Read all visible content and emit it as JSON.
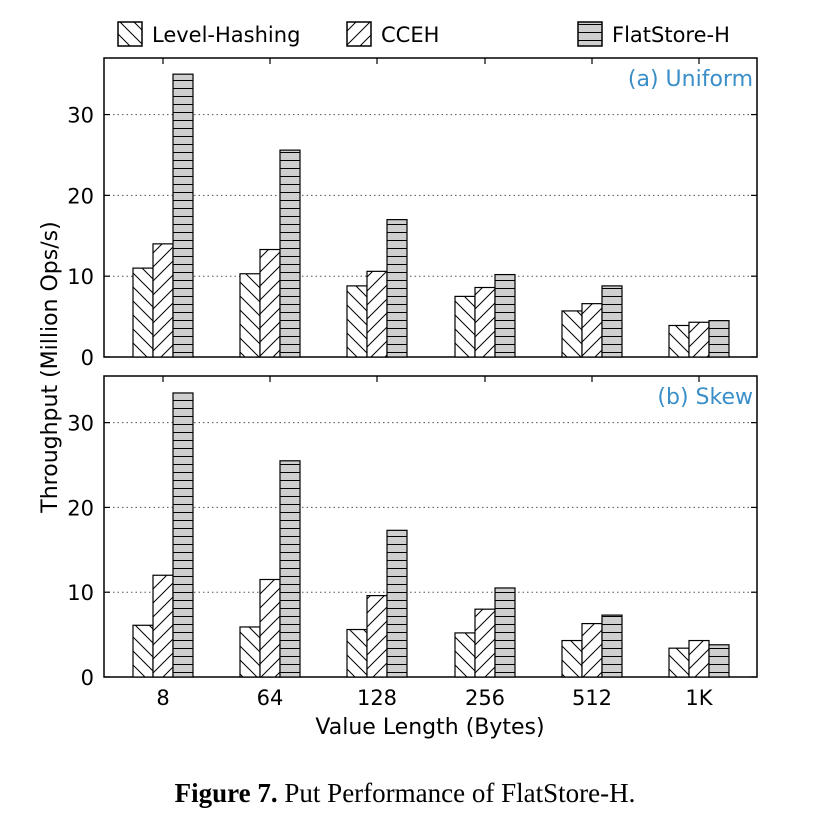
{
  "legend": [
    {
      "label": "Level-Hashing",
      "pattern": "backslash"
    },
    {
      "label": "CCEH",
      "pattern": "slash"
    },
    {
      "label": "FlatStore-H",
      "pattern": "horizontal"
    }
  ],
  "ylabel": "Throughput (Million Ops/s)",
  "xlabel": "Value Length (Bytes)",
  "caption": {
    "bold": "Figure 7.",
    "text": " Put Performance of FlatStore-H."
  },
  "colors": {
    "panel_title": "#3a8fc9",
    "bar_fill": "#ffffff",
    "flat_fill": "#cfcfcf",
    "grid": "#555555"
  },
  "chart_data": [
    {
      "type": "bar",
      "title": "(a) Uniform",
      "categories": [
        "8",
        "64",
        "128",
        "256",
        "512",
        "1K"
      ],
      "series": [
        {
          "name": "Level-Hashing",
          "values": [
            11.0,
            10.3,
            8.8,
            7.5,
            5.7,
            3.9
          ]
        },
        {
          "name": "CCEH",
          "values": [
            14.0,
            13.3,
            10.6,
            8.6,
            6.6,
            4.3
          ]
        },
        {
          "name": "FlatStore-H",
          "values": [
            35.0,
            25.6,
            17.0,
            10.2,
            8.8,
            4.5
          ]
        }
      ],
      "yticks": [
        0,
        10,
        20,
        30
      ],
      "ylim": [
        0,
        37
      ],
      "grid": true
    },
    {
      "type": "bar",
      "title": "(b) Skew",
      "categories": [
        "8",
        "64",
        "128",
        "256",
        "512",
        "1K"
      ],
      "series": [
        {
          "name": "Level-Hashing",
          "values": [
            6.1,
            5.9,
            5.6,
            5.2,
            4.3,
            3.4
          ]
        },
        {
          "name": "CCEH",
          "values": [
            12.0,
            11.5,
            9.6,
            8.0,
            6.3,
            4.3
          ]
        },
        {
          "name": "FlatStore-H",
          "values": [
            33.5,
            25.5,
            17.3,
            10.5,
            7.3,
            3.8
          ]
        }
      ],
      "yticks": [
        0,
        10,
        20,
        30
      ],
      "ylim": [
        0,
        35.5
      ],
      "grid": true
    }
  ]
}
